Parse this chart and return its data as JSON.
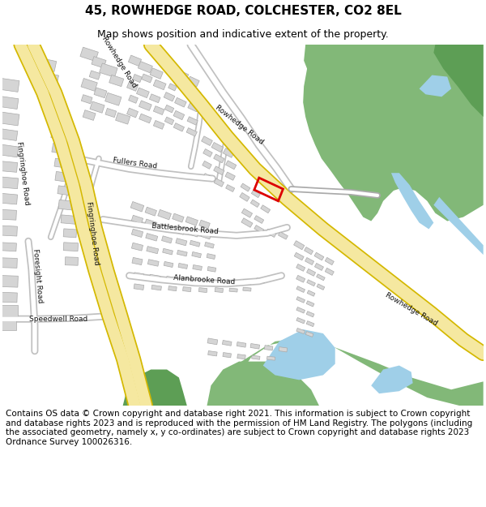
{
  "title": "45, ROWHEDGE ROAD, COLCHESTER, CO2 8EL",
  "subtitle": "Map shows position and indicative extent of the property.",
  "footer": "Contains OS data © Crown copyright and database right 2021. This information is subject to Crown copyright and database rights 2023 and is reproduced with the permission of HM Land Registry. The polygons (including the associated geometry, namely x, y co-ordinates) are subject to Crown copyright and database rights 2023 Ordnance Survey 100026316.",
  "bg_color": "#ffffff",
  "map_bg": "#f7f7f7",
  "road_yellow_fill": "#f5e8a0",
  "road_yellow_border": "#d4b800",
  "road_white_fill": "#ffffff",
  "road_white_border": "#c0c0c0",
  "green1": "#82b878",
  "green2": "#5d9e55",
  "water": "#9fcfe8",
  "bld_fill": "#d5d5d5",
  "bld_edge": "#aaaaaa",
  "red": "#dd0000",
  "title_fs": 11,
  "sub_fs": 9,
  "footer_fs": 7.5,
  "label_fs": 6.5
}
